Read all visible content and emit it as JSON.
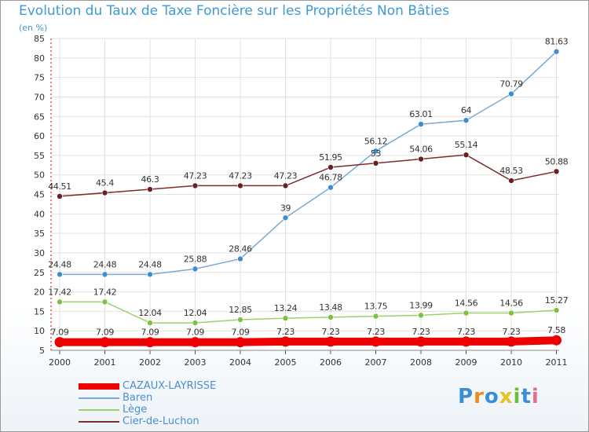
{
  "title": "Evolution du Taux de Taxe Foncière sur les Propriétés Non Bâties",
  "unit": "(en %)",
  "logo": "Proxiti",
  "chart_data": {
    "type": "line",
    "title": "Evolution du Taux de Taxe Foncière sur les Propriétés Non Bâties",
    "ylabel": "(en %)",
    "xlabel": "",
    "ylim": [
      5,
      85
    ],
    "yticks": [
      5,
      10,
      15,
      20,
      25,
      30,
      35,
      40,
      45,
      50,
      55,
      60,
      65,
      70,
      75,
      80,
      85
    ],
    "grid": true,
    "legend_position": "bottom-left",
    "x": [
      "2000",
      "2001",
      "2002",
      "2003",
      "2004",
      "2005",
      "2006",
      "2007",
      "2008",
      "2009",
      "2010",
      "2011"
    ],
    "series": [
      {
        "name": "CAZAUX-LAYRISSE",
        "color": "#ee0000",
        "bold": true,
        "values": [
          7.09,
          7.09,
          7.09,
          7.09,
          7.09,
          7.23,
          7.23,
          7.23,
          7.23,
          7.23,
          7.23,
          7.58
        ],
        "labels": [
          "7.09",
          "7.09",
          "7.09",
          "7.09",
          "7.09",
          "7.23",
          "7.23",
          "7.23",
          "7.23",
          "7.23",
          "7.23",
          "7.58"
        ]
      },
      {
        "name": "Baren",
        "color": "#78a9d4",
        "marker": "#3f8dcd",
        "values": [
          24.48,
          24.48,
          24.48,
          25.88,
          28.46,
          39,
          46.78,
          56.12,
          63.01,
          64,
          70.79,
          81.63
        ],
        "labels": [
          "24.48",
          "24.48",
          "24.48",
          "25.88",
          "28.46",
          "39",
          "46.78",
          "56.12",
          "63.01",
          "64",
          "70.79",
          "81.63"
        ]
      },
      {
        "name": "Lège",
        "color": "#9dd16a",
        "marker": "#7cc142",
        "values": [
          17.42,
          17.42,
          12.04,
          12.04,
          12.85,
          13.24,
          13.48,
          13.75,
          13.99,
          14.56,
          14.56,
          15.27
        ],
        "labels": [
          "17.42",
          "17.42",
          "12.04",
          "12.04",
          "12.85",
          "13.24",
          "13.48",
          "13.75",
          "13.99",
          "14.56",
          "14.56",
          "15.27"
        ]
      },
      {
        "name": "Cier-de-Luchon",
        "color": "#7a2e2e",
        "marker": "#6b1f1f",
        "values": [
          44.51,
          45.4,
          46.3,
          47.23,
          47.23,
          47.23,
          51.95,
          53,
          54.06,
          55.14,
          48.53,
          50.88
        ],
        "labels": [
          "44.51",
          "45.4",
          "46.3",
          "47.23",
          "47.23",
          "47.23",
          "51.95",
          "53",
          "54.06",
          "55.14",
          "48.53",
          "50.88"
        ]
      }
    ]
  }
}
